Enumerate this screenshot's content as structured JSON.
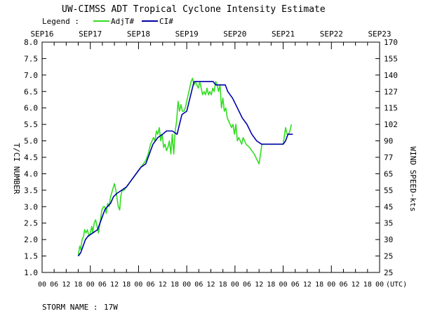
{
  "chart_data": {
    "type": "line",
    "title": "UW-CIMSS ADT Tropical Cyclone Intensity Estimate",
    "legend_label": "Legend :",
    "legend_placement": "top-left",
    "ylabel": "T/CI NUMBER",
    "y2label": "WIND SPEED-kts",
    "storm_name_label": "STORM NAME :",
    "storm_name": "17W",
    "grid": false,
    "colors": {
      "adjt": "#33dd22",
      "ci": "#0000aa",
      "axis": "#000000"
    },
    "xlim": [
      0,
      7
    ],
    "ylim": [
      1.0,
      8.0
    ],
    "date_labels": [
      {
        "x": 0,
        "label": "SEP16"
      },
      {
        "x": 1,
        "label": "SEP17"
      },
      {
        "x": 2,
        "label": "SEP18"
      },
      {
        "x": 3,
        "label": "SEP19"
      },
      {
        "x": 4,
        "label": "SEP20"
      },
      {
        "x": 5,
        "label": "SEP21"
      },
      {
        "x": 6,
        "label": "SEP22"
      },
      {
        "x": 7,
        "label": "SEP23"
      }
    ],
    "x_hour_ticks": [
      "00",
      "06",
      "12",
      "18",
      "00",
      "06",
      "12",
      "18",
      "00",
      "06",
      "12",
      "18",
      "00",
      "06",
      "12",
      "18",
      "00",
      "06",
      "12",
      "18",
      "00",
      "06",
      "12",
      "18",
      "00",
      "06",
      "12",
      "18",
      "00"
    ],
    "x_unit_label": "(UTC)",
    "y_ticks": [
      "1.0",
      "1.5",
      "2.0",
      "2.5",
      "3.0",
      "3.5",
      "4.0",
      "4.5",
      "5.0",
      "5.5",
      "6.0",
      "6.5",
      "7.0",
      "7.5",
      "8.0"
    ],
    "y2_ticks": [
      "25",
      "25",
      "30",
      "35",
      "45",
      "55",
      "65",
      "77",
      "90",
      "102",
      "115",
      "127",
      "140",
      "155",
      "170"
    ],
    "series": [
      {
        "name": "AdjT#",
        "key": "adjt",
        "points": [
          [
            0.75,
            1.5
          ],
          [
            0.78,
            1.8
          ],
          [
            0.8,
            1.7
          ],
          [
            0.83,
            2.0
          ],
          [
            0.86,
            2.1
          ],
          [
            0.88,
            2.3
          ],
          [
            0.91,
            2.2
          ],
          [
            0.94,
            2.3
          ],
          [
            0.97,
            2.1
          ],
          [
            1.0,
            2.2
          ],
          [
            1.03,
            2.4
          ],
          [
            1.05,
            2.2
          ],
          [
            1.08,
            2.5
          ],
          [
            1.11,
            2.6
          ],
          [
            1.14,
            2.4
          ],
          [
            1.17,
            2.2
          ],
          [
            1.2,
            2.5
          ],
          [
            1.24,
            2.9
          ],
          [
            1.27,
            3.0
          ],
          [
            1.3,
            3.0
          ],
          [
            1.33,
            2.8
          ],
          [
            1.36,
            3.1
          ],
          [
            1.39,
            3.0
          ],
          [
            1.42,
            3.3
          ],
          [
            1.46,
            3.5
          ],
          [
            1.5,
            3.7
          ],
          [
            1.53,
            3.5
          ],
          [
            1.56,
            3.2
          ],
          [
            1.58,
            3.0
          ],
          [
            1.61,
            2.9
          ],
          [
            1.63,
            3.3
          ],
          [
            1.66,
            3.5
          ],
          [
            1.7,
            3.5
          ],
          [
            1.75,
            3.6
          ],
          [
            1.8,
            3.7
          ],
          [
            1.85,
            3.8
          ],
          [
            1.9,
            3.9
          ],
          [
            1.95,
            4.0
          ],
          [
            2.0,
            4.1
          ],
          [
            2.05,
            4.2
          ],
          [
            2.1,
            4.3
          ],
          [
            2.15,
            4.4
          ],
          [
            2.2,
            4.6
          ],
          [
            2.25,
            4.9
          ],
          [
            2.28,
            5.0
          ],
          [
            2.31,
            5.1
          ],
          [
            2.34,
            5.0
          ],
          [
            2.37,
            5.3
          ],
          [
            2.4,
            5.2
          ],
          [
            2.43,
            5.4
          ],
          [
            2.46,
            5.0
          ],
          [
            2.49,
            5.2
          ],
          [
            2.52,
            4.8
          ],
          [
            2.55,
            4.9
          ],
          [
            2.58,
            4.7
          ],
          [
            2.61,
            4.8
          ],
          [
            2.64,
            5.0
          ],
          [
            2.67,
            4.6
          ],
          [
            2.7,
            5.2
          ],
          [
            2.73,
            4.6
          ],
          [
            2.76,
            5.3
          ],
          [
            2.79,
            5.6
          ],
          [
            2.82,
            6.2
          ],
          [
            2.85,
            5.9
          ],
          [
            2.88,
            6.1
          ],
          [
            2.91,
            5.9
          ],
          [
            2.94,
            5.9
          ],
          [
            2.97,
            6.0
          ],
          [
            3.0,
            6.2
          ],
          [
            3.03,
            6.4
          ],
          [
            3.06,
            6.6
          ],
          [
            3.09,
            6.8
          ],
          [
            3.12,
            6.9
          ],
          [
            3.15,
            6.7
          ],
          [
            3.18,
            6.8
          ],
          [
            3.21,
            6.7
          ],
          [
            3.24,
            6.6
          ],
          [
            3.27,
            6.8
          ],
          [
            3.3,
            6.6
          ],
          [
            3.33,
            6.4
          ],
          [
            3.36,
            6.5
          ],
          [
            3.39,
            6.4
          ],
          [
            3.42,
            6.6
          ],
          [
            3.45,
            6.4
          ],
          [
            3.48,
            6.5
          ],
          [
            3.51,
            6.4
          ],
          [
            3.54,
            6.6
          ],
          [
            3.57,
            6.5
          ],
          [
            3.6,
            6.8
          ],
          [
            3.63,
            6.7
          ],
          [
            3.66,
            6.5
          ],
          [
            3.69,
            6.7
          ],
          [
            3.72,
            6.0
          ],
          [
            3.75,
            6.3
          ],
          [
            3.78,
            5.9
          ],
          [
            3.81,
            6.0
          ],
          [
            3.84,
            5.7
          ],
          [
            3.87,
            5.6
          ],
          [
            3.9,
            5.5
          ],
          [
            3.93,
            5.4
          ],
          [
            3.96,
            5.5
          ],
          [
            3.99,
            5.2
          ],
          [
            4.02,
            5.5
          ],
          [
            4.05,
            5.0
          ],
          [
            4.08,
            5.1
          ],
          [
            4.11,
            5.0
          ],
          [
            4.14,
            4.9
          ],
          [
            4.17,
            5.1
          ],
          [
            4.2,
            5.0
          ],
          [
            4.23,
            4.9
          ],
          [
            4.3,
            4.8
          ],
          [
            4.4,
            4.6
          ],
          [
            4.5,
            4.3
          ],
          [
            4.53,
            4.6
          ],
          [
            4.56,
            4.9
          ],
          [
            5.0,
            4.9
          ],
          [
            5.05,
            5.4
          ],
          [
            5.08,
            5.2
          ],
          [
            5.11,
            5.2
          ],
          [
            5.14,
            5.3
          ],
          [
            5.17,
            5.5
          ]
        ]
      },
      {
        "name": "CI#",
        "key": "ci",
        "points": [
          [
            0.75,
            1.5
          ],
          [
            0.8,
            1.6
          ],
          [
            0.85,
            1.8
          ],
          [
            0.9,
            2.0
          ],
          [
            0.95,
            2.1
          ],
          [
            1.05,
            2.2
          ],
          [
            1.15,
            2.3
          ],
          [
            1.2,
            2.5
          ],
          [
            1.25,
            2.7
          ],
          [
            1.3,
            2.9
          ],
          [
            1.35,
            3.0
          ],
          [
            1.42,
            3.1
          ],
          [
            1.48,
            3.3
          ],
          [
            1.55,
            3.4
          ],
          [
            1.65,
            3.5
          ],
          [
            1.75,
            3.6
          ],
          [
            1.85,
            3.8
          ],
          [
            1.95,
            4.0
          ],
          [
            2.05,
            4.2
          ],
          [
            2.15,
            4.3
          ],
          [
            2.2,
            4.5
          ],
          [
            2.25,
            4.7
          ],
          [
            2.3,
            4.9
          ],
          [
            2.35,
            5.0
          ],
          [
            2.4,
            5.1
          ],
          [
            2.5,
            5.2
          ],
          [
            2.58,
            5.3
          ],
          [
            2.7,
            5.3
          ],
          [
            2.8,
            5.2
          ],
          [
            2.85,
            5.5
          ],
          [
            2.9,
            5.8
          ],
          [
            3.0,
            5.9
          ],
          [
            3.05,
            6.2
          ],
          [
            3.1,
            6.5
          ],
          [
            3.15,
            6.8
          ],
          [
            3.55,
            6.8
          ],
          [
            3.6,
            6.7
          ],
          [
            3.8,
            6.7
          ],
          [
            3.85,
            6.5
          ],
          [
            3.95,
            6.3
          ],
          [
            4.05,
            6.0
          ],
          [
            4.15,
            5.7
          ],
          [
            4.25,
            5.5
          ],
          [
            4.35,
            5.2
          ],
          [
            4.45,
            5.0
          ],
          [
            4.55,
            4.9
          ],
          [
            5.0,
            4.9
          ],
          [
            5.05,
            5.0
          ],
          [
            5.1,
            5.2
          ],
          [
            5.2,
            5.2
          ]
        ]
      }
    ]
  }
}
